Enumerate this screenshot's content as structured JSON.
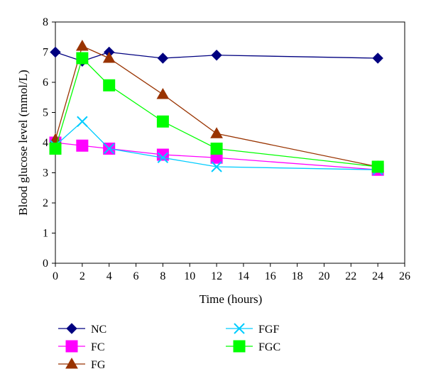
{
  "chart_data": {
    "type": "line",
    "title": "",
    "xlabel": "Time (hours)",
    "ylabel": "Blood glucose level (mmol/L)",
    "xlim": [
      0,
      26
    ],
    "ylim": [
      0,
      8
    ],
    "xticks": [
      0,
      2,
      4,
      6,
      8,
      10,
      12,
      14,
      16,
      18,
      20,
      22,
      24,
      26
    ],
    "yticks": [
      0,
      1,
      2,
      3,
      4,
      5,
      6,
      7,
      8
    ],
    "grid": false,
    "legend_position": "bottom",
    "x": [
      0,
      2,
      4,
      8,
      12,
      24
    ],
    "series": [
      {
        "name": "NC",
        "color": "#000080",
        "marker": "diamond",
        "values": [
          7.0,
          6.7,
          7.0,
          6.8,
          6.9,
          6.8
        ]
      },
      {
        "name": "FC",
        "color": "#ff00ff",
        "marker": "square",
        "values": [
          4.0,
          3.9,
          3.8,
          3.6,
          3.5,
          3.1
        ]
      },
      {
        "name": "FG",
        "color": "#993300",
        "marker": "triangle",
        "values": [
          4.1,
          7.2,
          6.8,
          5.6,
          4.3,
          3.2
        ]
      },
      {
        "name": "FGF",
        "color": "#00ccff",
        "marker": "x",
        "values": [
          3.9,
          4.7,
          3.8,
          3.5,
          3.2,
          3.1
        ]
      },
      {
        "name": "FGC",
        "color": "#00ff00",
        "marker": "square",
        "values": [
          3.8,
          6.8,
          5.9,
          4.7,
          3.8,
          3.2
        ]
      }
    ]
  }
}
